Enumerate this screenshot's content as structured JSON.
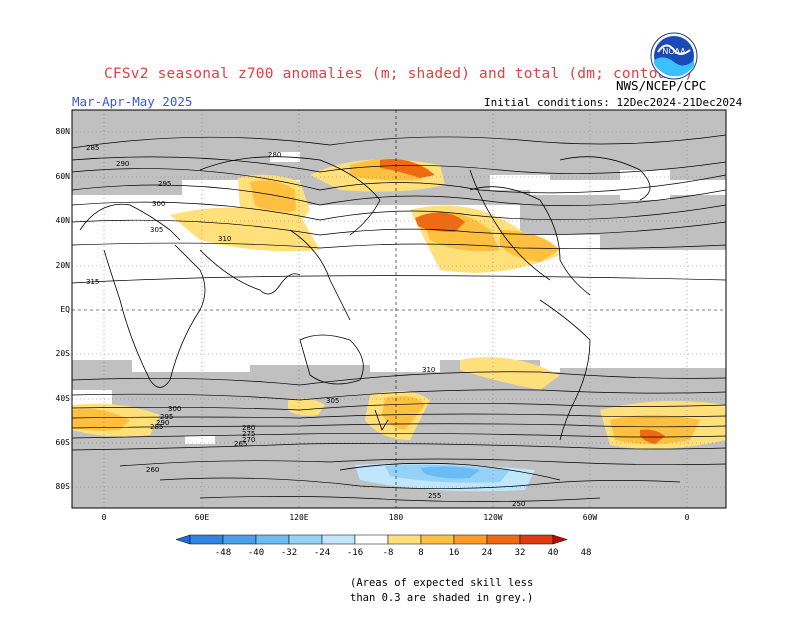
{
  "title": "CFSv2 seasonal z700 anomalies (m; shaded) and total (dm; contours)",
  "season": "Mar-Apr-May 2025",
  "agency": "NWS/NCEP/CPC",
  "logo_text": "NOAA",
  "initial_conditions": "Initial conditions: 12Dec2024-21Dec2024",
  "lat_labels": [
    "80N",
    "60N",
    "40N",
    "20N",
    "EQ",
    "20S",
    "40S",
    "60S",
    "80S"
  ],
  "lon_labels": [
    "0",
    "60E",
    "120E",
    "180",
    "120W",
    "60W",
    "0"
  ],
  "colorbar": {
    "labels": [
      "-48",
      "-40",
      "-32",
      "-24",
      "-16",
      "-8",
      "8",
      "16",
      "24",
      "32",
      "40",
      "48"
    ],
    "colors": [
      "#1e6ed8",
      "#2e86e4",
      "#4aa0ee",
      "#6cbcf4",
      "#96d2f8",
      "#bfe6fb",
      "#ffffff",
      "#ffe07a",
      "#ffc040",
      "#ff9a24",
      "#f06a14",
      "#e03a10",
      "#b41008"
    ]
  },
  "contour_labels": [
    "285",
    "280",
    "290",
    "295",
    "300",
    "305",
    "310",
    "315",
    "310",
    "305",
    "300",
    "295",
    "290",
    "285",
    "280",
    "275",
    "270",
    "265",
    "260",
    "255",
    "250"
  ],
  "note_line1": "(Areas of expected skill less",
  "note_line2": "than 0.3 are shaded in grey.)",
  "colors": {
    "grey_mask": "#c0c0c0",
    "title": "#e04040",
    "season": "#3a5ad0"
  }
}
